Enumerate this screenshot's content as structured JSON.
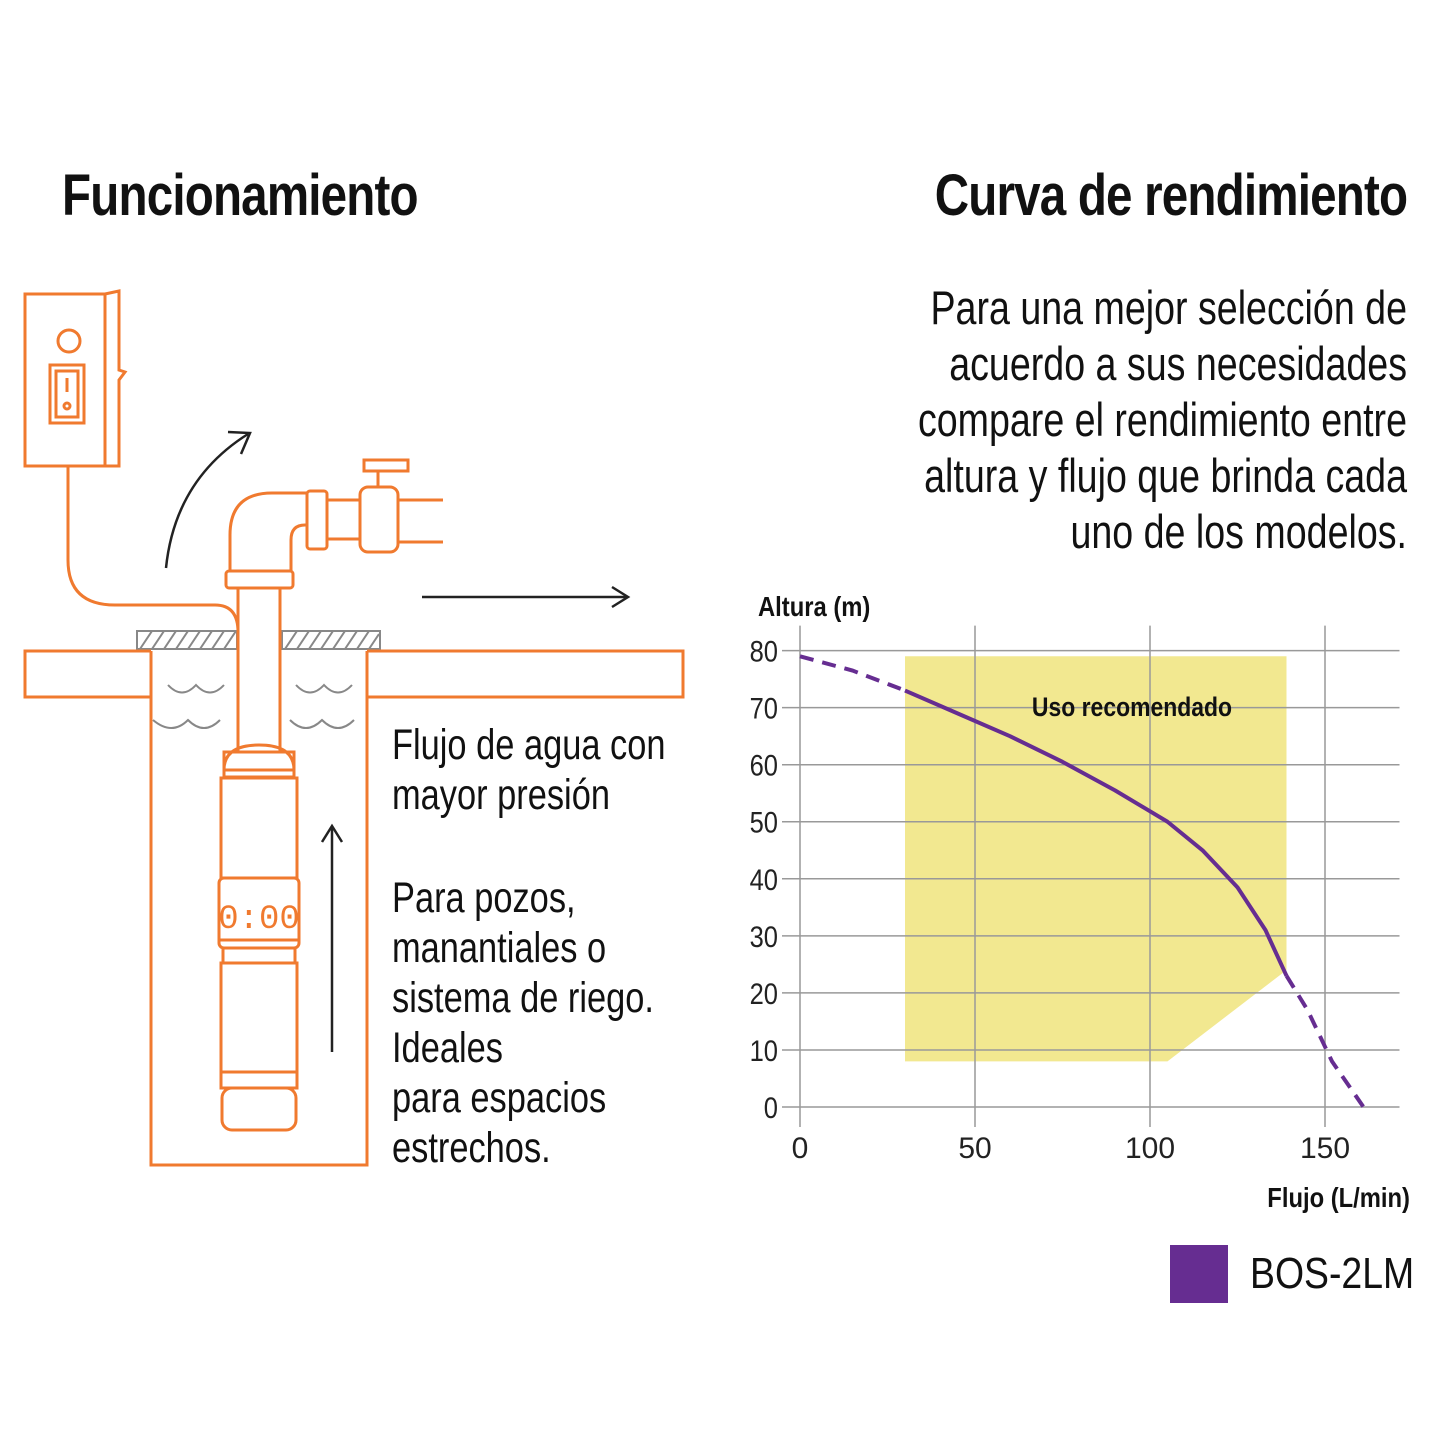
{
  "left": {
    "heading": "Funcionamiento",
    "flow_lines": [
      "Flujo de agua con",
      "mayor presión"
    ],
    "use_lines": [
      "Para pozos,",
      "manantiales o",
      "sistema de riego.",
      "Ideales",
      "para espacios",
      "estrechos."
    ],
    "pump_display": "0:00"
  },
  "right": {
    "heading": "Curva de rendimiento",
    "intro_lines": [
      "Para una mejor selección de",
      "acuerdo a sus necesidades",
      "compare el rendimiento entre",
      "altura y flujo que brinda cada",
      "uno de los modelos."
    ]
  },
  "colors": {
    "orange": "#f07a2f",
    "purple": "#662d91",
    "zone": "#f2e890"
  },
  "icons": [
    "control-box-icon",
    "submersible-pump-icon",
    "pipe-valve-icon",
    "arrow-up-icon",
    "arrow-right-icon",
    "curved-arrow-icon"
  ],
  "chart_data": {
    "type": "line",
    "xlabel": "Flujo (L/min)",
    "ylabel": "Altura (m)",
    "xlim": [
      0,
      175
    ],
    "ylim": [
      0,
      80
    ],
    "xticks": [
      0,
      50,
      100,
      150
    ],
    "yticks": [
      0,
      10,
      20,
      30,
      40,
      50,
      60,
      70,
      80
    ],
    "grid": true,
    "legend_position": "bottom-right",
    "recommended_zone": {
      "label": "Uso recomendado",
      "polygon": [
        [
          30,
          79
        ],
        [
          139,
          79
        ],
        [
          139,
          24
        ],
        [
          105,
          8
        ],
        [
          30,
          8
        ]
      ]
    },
    "series": [
      {
        "name": "BOS-2LM",
        "color": "#662d91",
        "solid": [
          [
            30,
            73
          ],
          [
            45,
            69
          ],
          [
            60,
            65
          ],
          [
            75,
            60.5
          ],
          [
            90,
            55.5
          ],
          [
            105,
            50
          ],
          [
            115,
            45
          ],
          [
            125,
            38.5
          ],
          [
            133,
            31
          ],
          [
            139,
            23
          ]
        ],
        "dashed_start": [
          [
            0,
            79
          ],
          [
            15,
            76.5
          ],
          [
            30,
            73
          ]
        ],
        "dashed_end": [
          [
            139,
            23
          ],
          [
            145,
            17
          ],
          [
            152,
            8
          ],
          [
            161,
            0
          ]
        ]
      }
    ]
  }
}
